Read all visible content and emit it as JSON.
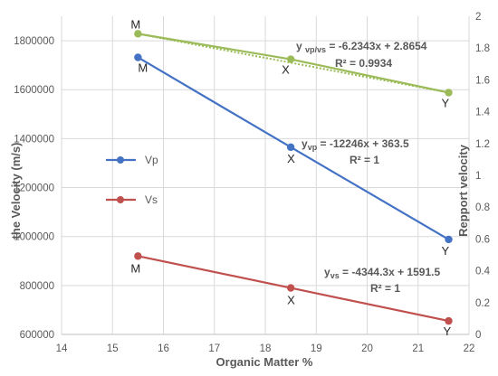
{
  "chart_data": {
    "type": "line",
    "xlabel": "Organic Matter %",
    "ylabel": "the Velocity  (m/s)",
    "y2label": "Repport  velocity",
    "xlim": [
      14,
      22
    ],
    "ylim": [
      600000,
      1900000
    ],
    "y2lim": [
      0,
      2
    ],
    "xticks": [
      14,
      15,
      16,
      17,
      18,
      19,
      20,
      21,
      22
    ],
    "yticks": [
      600000,
      800000,
      1000000,
      1200000,
      1400000,
      1600000,
      1800000
    ],
    "y2ticks": [
      0,
      0.2,
      0.4,
      0.6,
      0.8,
      1,
      1.2,
      1.4,
      1.6,
      1.8,
      2
    ],
    "y2ticklabels": [
      "0",
      "0.2",
      "0.4",
      "0.6",
      "0.8",
      "1",
      "1.2",
      "1.4",
      "1.6",
      "1.8",
      "2"
    ],
    "grid": true,
    "legend": {
      "placement": "left-center",
      "entries": [
        "Vp",
        "Vs"
      ]
    },
    "series": [
      {
        "name": "Vp",
        "axis": "primary",
        "color": "#4472C4",
        "x": [
          15.5,
          18.5,
          21.6
        ],
        "y": [
          1732000,
          1365000,
          988000
        ],
        "point_labels": [
          "M",
          "X",
          "Y"
        ],
        "equation": {
          "prefix": "y",
          "sub": "vp",
          "text": "= -12246x + 363.5",
          "r2": "R² = 1"
        }
      },
      {
        "name": "Vs",
        "axis": "primary",
        "color": "#C0504D",
        "x": [
          15.5,
          18.5,
          21.6
        ],
        "y": [
          920000,
          790000,
          655000
        ],
        "point_labels": [
          "M",
          "X",
          "Y"
        ],
        "equation": {
          "prefix": "y",
          "sub": "vs",
          "text": " = -4344.3x + 1591.5",
          "r2": "R² = 1"
        }
      },
      {
        "name": "",
        "axis": "secondary",
        "color": "#9BBB59",
        "trendline": true,
        "x": [
          15.5,
          18.5,
          21.6
        ],
        "y": [
          1.89,
          1.73,
          1.52
        ],
        "point_labels": [
          "M",
          "X",
          "Y"
        ],
        "equation": {
          "prefix": "y ",
          "sub": "vp/vs",
          "text": "= -6.2343x + 2.8654",
          "r2": "R² = 0.9934"
        }
      }
    ]
  }
}
